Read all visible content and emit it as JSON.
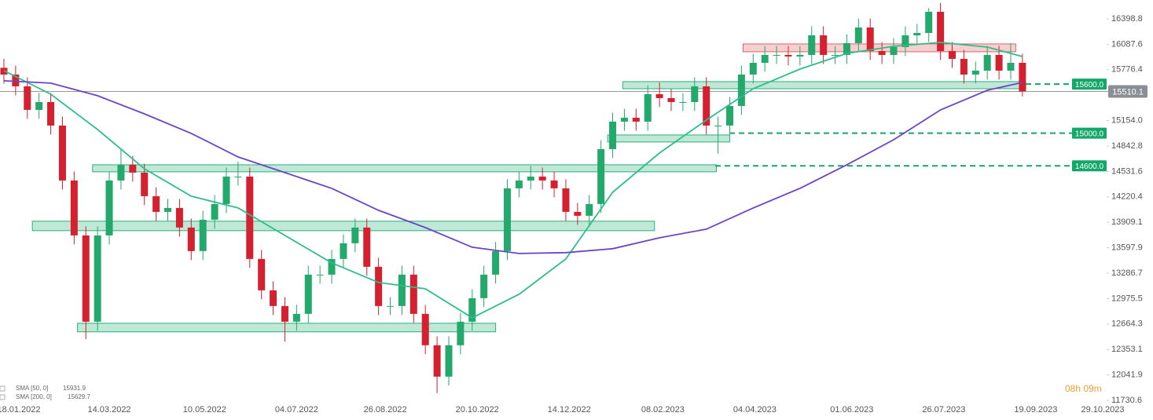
{
  "chart_data": {
    "type": "candlestick",
    "up_color": "#22a96b",
    "down_color": "#d4202f",
    "ylim": [
      11730.6,
      16398.8
    ],
    "yticks": [
      16398.8,
      16087.6,
      15776.4,
      {
        "value": 15154.0,
        "label": "15154.0"
      },
      14842.8,
      14531.6,
      14220.4,
      13909.1,
      13597.9,
      13286.7,
      12975.5,
      12664.3,
      12353.1,
      12041.9,
      11730.6
    ],
    "xticks": [
      "18.01.2022",
      "14.03.2022",
      "10.05.2022",
      "04.07.2022",
      "26.08.2022",
      "20.10.2022",
      "14.12.2022",
      "08.02.2023",
      "04.04.2023",
      "01.06.2023",
      "26.07.2023",
      "19.09.2023",
      "29.10.2023"
    ],
    "candles": {
      "x": [
        "10.01.2022",
        "17.01.2022",
        "24.01.2022",
        "31.01.2022",
        "07.02.2022",
        "14.02.2022",
        "21.02.2022",
        "28.02.2022",
        "07.03.2022",
        "14.03.2022",
        "21.03.2022",
        "28.03.2022",
        "04.04.2022",
        "11.04.2022",
        "18.04.2022",
        "25.04.2022",
        "02.05.2022",
        "09.05.2022",
        "16.05.2022",
        "23.05.2022",
        "30.05.2022",
        "06.06.2022",
        "13.06.2022",
        "20.06.2022",
        "27.06.2022",
        "04.07.2022",
        "11.07.2022",
        "18.07.2022",
        "25.07.2022",
        "01.08.2022",
        "08.08.2022",
        "15.08.2022",
        "22.08.2022",
        "29.08.2022",
        "05.09.2022",
        "12.09.2022",
        "19.09.2022",
        "26.09.2022",
        "03.10.2022",
        "10.10.2022",
        "17.10.2022",
        "24.10.2022",
        "31.10.2022",
        "07.11.2022",
        "14.11.2022",
        "21.11.2022",
        "28.11.2022",
        "05.12.2022",
        "12.12.2022",
        "19.12.2022",
        "26.12.2022",
        "02.01.2023",
        "09.01.2023",
        "16.01.2023",
        "23.01.2023",
        "30.01.2023",
        "06.02.2023",
        "13.02.2023",
        "20.02.2023",
        "27.02.2023",
        "06.03.2023",
        "13.03.2023",
        "20.03.2023",
        "27.03.2023",
        "03.04.2023",
        "10.04.2023",
        "17.04.2023",
        "24.04.2023",
        "01.05.2023",
        "08.05.2023",
        "15.05.2023",
        "22.05.2023",
        "29.05.2023",
        "05.06.2023",
        "12.06.2023",
        "19.06.2023",
        "26.06.2023",
        "03.07.2023",
        "10.07.2023",
        "17.07.2023",
        "24.07.2023",
        "31.07.2023",
        "07.08.2023",
        "14.08.2023",
        "21.08.2023",
        "28.08.2023",
        "04.09.2023",
        "11.09.2023"
      ],
      "open": [
        15800,
        15717,
        15573,
        15285,
        15381,
        15093,
        14421,
        13749,
        12693,
        13749,
        14421,
        14613,
        14517,
        14229,
        14037,
        14085,
        13845,
        13557,
        13941,
        14133,
        14469,
        14469,
        13461,
        13077,
        12885,
        12693,
        12789,
        13269,
        13269,
        13461,
        13653,
        13845,
        13365,
        12885,
        12885,
        13269,
        12789,
        12405,
        12021,
        12405,
        12693,
        12981,
        13269,
        13557,
        14325,
        14421,
        14469,
        14421,
        14325,
        14037,
        13989,
        14133,
        14805,
        15141,
        15189,
        15141,
        15477,
        15429,
        15381,
        15381,
        15573,
        15093,
        15093,
        15333,
        15717,
        15861,
        15957,
        15957,
        15938,
        15957,
        16197,
        15957,
        15957,
        16101,
        16293,
        16005,
        15957,
        16053,
        16197,
        16226,
        16485,
        16005,
        15909,
        15717,
        15765,
        15957,
        15765,
        15861
      ],
      "high": [
        15910,
        15827,
        15683,
        15491,
        15491,
        15203,
        14531,
        13859,
        13859,
        14531,
        14800,
        14723,
        14627,
        14339,
        14195,
        14195,
        13955,
        14051,
        14243,
        14579,
        14650,
        14579,
        13571,
        13187,
        12995,
        12899,
        13379,
        13379,
        13571,
        13763,
        13955,
        13955,
        13475,
        12995,
        13379,
        13379,
        12899,
        12515,
        12515,
        12803,
        13091,
        13379,
        13667,
        14435,
        14531,
        14600,
        14579,
        14531,
        14435,
        14147,
        14243,
        14915,
        15251,
        15299,
        15299,
        15587,
        15620,
        15539,
        15491,
        15683,
        15683,
        15203,
        15443,
        15827,
        15971,
        16067,
        16067,
        16067,
        16067,
        16307,
        16307,
        16067,
        16211,
        16403,
        16403,
        16115,
        16163,
        16307,
        16336,
        16530,
        16595,
        16115,
        16019,
        15875,
        16067,
        16067,
        16100,
        15971
      ],
      "low": [
        15607,
        15463,
        15175,
        15175,
        14983,
        14311,
        13639,
        12480,
        12583,
        13639,
        14311,
        14407,
        14119,
        13927,
        13927,
        13735,
        13447,
        13447,
        13831,
        14023,
        14359,
        13351,
        12967,
        12775,
        12450,
        12583,
        12679,
        13159,
        13159,
        13351,
        13543,
        13255,
        12775,
        12775,
        12775,
        12679,
        12295,
        11820,
        11911,
        12295,
        12583,
        12871,
        13159,
        13447,
        14215,
        14311,
        14311,
        14215,
        13927,
        13879,
        13879,
        14023,
        14695,
        15031,
        15031,
        15031,
        15319,
        15271,
        15271,
        15271,
        14983,
        14750,
        14983,
        15223,
        15607,
        15751,
        15847,
        15828,
        15828,
        15847,
        15847,
        15847,
        15847,
        15991,
        15895,
        15847,
        15847,
        15943,
        16087,
        16116,
        15895,
        15799,
        15607,
        15607,
        15655,
        15655,
        15655,
        15450
      ],
      "close": [
        15717,
        15573,
        15285,
        15381,
        15093,
        14421,
        13749,
        12693,
        13749,
        14421,
        14613,
        14517,
        14229,
        14037,
        14085,
        13845,
        13557,
        13941,
        14133,
        14469,
        14469,
        13461,
        13077,
        12885,
        12693,
        12789,
        13269,
        13269,
        13461,
        13653,
        13845,
        13365,
        12885,
        12885,
        13269,
        12789,
        12405,
        12021,
        12405,
        12693,
        12981,
        13269,
        13557,
        14325,
        14421,
        14469,
        14421,
        14325,
        14037,
        13989,
        14133,
        14805,
        15141,
        15189,
        15141,
        15477,
        15429,
        15381,
        15381,
        15573,
        15093,
        15093,
        15333,
        15717,
        15861,
        15957,
        15957,
        15938,
        15957,
        16197,
        15957,
        15957,
        16101,
        16293,
        16005,
        15957,
        16053,
        16197,
        16226,
        16485,
        16005,
        15909,
        15717,
        15765,
        15957,
        15765,
        15861,
        15510
      ]
    },
    "series": [
      {
        "name": "SMA [50, 0]",
        "last_value": 15931.9,
        "color": "#2dbd8a",
        "x": [
          "10.01.2022",
          "07.02.2022",
          "07.03.2022",
          "04.04.2022",
          "02.05.2022",
          "30.05.2022",
          "27.06.2022",
          "25.07.2022",
          "22.08.2022",
          "19.09.2022",
          "17.10.2022",
          "14.11.2022",
          "12.12.2022",
          "09.01.2023",
          "06.02.2023",
          "06.03.2023",
          "03.04.2023",
          "01.05.2023",
          "29.05.2023",
          "26.06.2023",
          "24.07.2023",
          "21.08.2023",
          "11.09.2023"
        ],
        "values": [
          15765,
          15477,
          15045,
          14565,
          14229,
          14085,
          13749,
          13413,
          13173,
          13096,
          12741,
          13029,
          13461,
          14277,
          14757,
          15160,
          15544,
          15784,
          15976,
          16063,
          16111,
          16053,
          15938
        ]
      },
      {
        "name": "SMA [200, 0]",
        "last_value": 15629.7,
        "color": "#6a45c9",
        "x": [
          "10.01.2022",
          "07.02.2022",
          "07.03.2022",
          "04.04.2022",
          "02.05.2022",
          "30.05.2022",
          "27.06.2022",
          "25.07.2022",
          "22.08.2022",
          "19.09.2022",
          "17.10.2022",
          "14.11.2022",
          "12.12.2022",
          "09.01.2023",
          "06.02.2023",
          "06.03.2023",
          "03.04.2023",
          "01.05.2023",
          "29.05.2023",
          "26.06.2023",
          "24.07.2023",
          "21.08.2023",
          "11.09.2023"
        ],
        "values": [
          15641,
          15612,
          15458,
          15237,
          14997,
          14709,
          14517,
          14325,
          14056,
          13845,
          13605,
          13528,
          13538,
          13586,
          13720,
          13826,
          14085,
          14325,
          14613,
          14920,
          15285,
          15525,
          15621
        ]
      }
    ],
    "zones": [
      {
        "from": "15.01.2023",
        "to": "13.09.2023",
        "low": 15544,
        "high": 15631,
        "color": "#2bb27b"
      },
      {
        "from": "28.03.2023",
        "to": "07.09.2023",
        "low": 15996,
        "high": 16092,
        "color": "#e06464"
      },
      {
        "from": "06.01.2023",
        "to": "20.03.2023",
        "low": 14892,
        "high": 14978,
        "color": "#2bb27b"
      },
      {
        "from": "04.03.2022",
        "to": "12.03.2023",
        "low": 14527,
        "high": 14613,
        "color": "#2bb27b"
      },
      {
        "from": "27.01.2022",
        "to": "03.02.2023",
        "low": 13807,
        "high": 13923,
        "color": "#2bb27b"
      },
      {
        "from": "23.02.2022",
        "to": "31.10.2022",
        "low": 12569,
        "high": 12674,
        "color": "#2bb27b"
      }
    ],
    "levels": [
      {
        "value": 15600.0,
        "label": "15600.0"
      },
      {
        "value": 15000.0,
        "label": "15000.0"
      },
      {
        "value": 14600.0,
        "label": "14600.0"
      }
    ],
    "level_color": "#13a86a",
    "last_price": 15510.1,
    "timer": "08h 09m"
  }
}
